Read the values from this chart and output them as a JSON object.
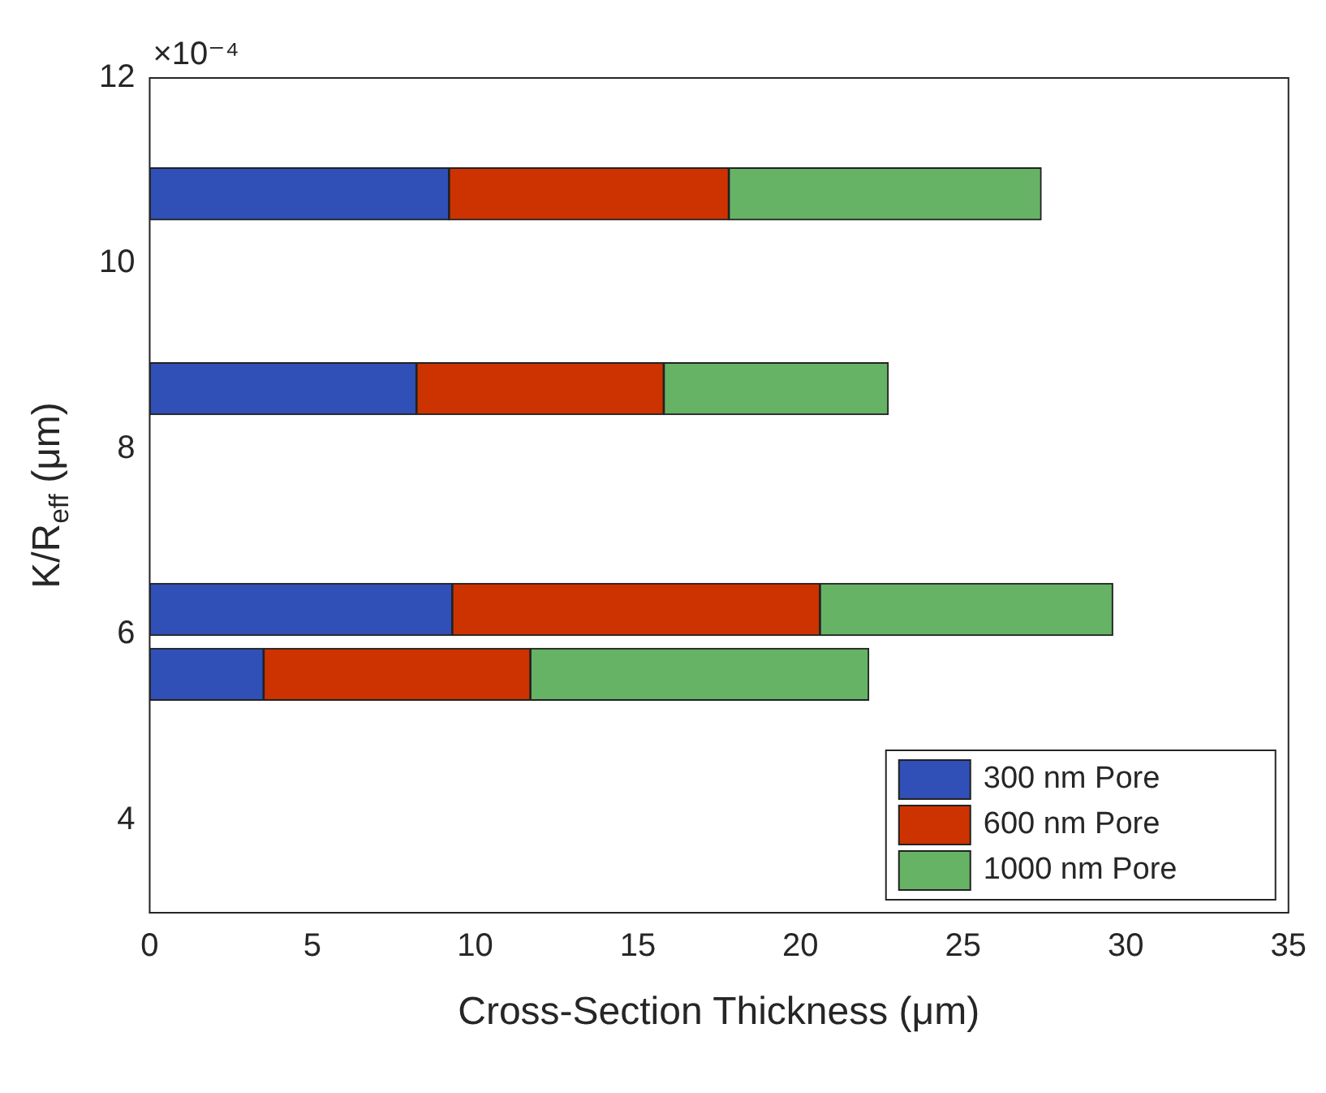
{
  "chart_data": {
    "type": "bar",
    "orientation": "horizontal",
    "stacked": true,
    "xlabel": "Cross-Section Thickness (μm)",
    "ylabel": "K/R$_{eff}$ (μm)",
    "annotations": [
      "×10⁻⁴"
    ],
    "x": [
      10.75,
      8.65,
      6.27,
      5.57
    ],
    "series": [
      {
        "name": "300 nm Pore",
        "color": "#3050b8",
        "values": [
          9.2,
          8.2,
          9.3,
          3.5
        ]
      },
      {
        "name": "600 nm Pore",
        "color": "#cc3300",
        "values": [
          8.6,
          7.6,
          11.3,
          8.2
        ]
      },
      {
        "name": "1000 nm Pore",
        "color": "#66b366",
        "values": [
          9.6,
          6.9,
          9.0,
          10.4
        ]
      }
    ],
    "xlim": [
      0,
      35
    ],
    "xticks": [
      0,
      5,
      10,
      15,
      20,
      25,
      30,
      35
    ],
    "ylim": [
      3,
      12
    ],
    "yticks": [
      4,
      6,
      8,
      10,
      12
    ],
    "grid": false,
    "legend": "bottom right"
  }
}
